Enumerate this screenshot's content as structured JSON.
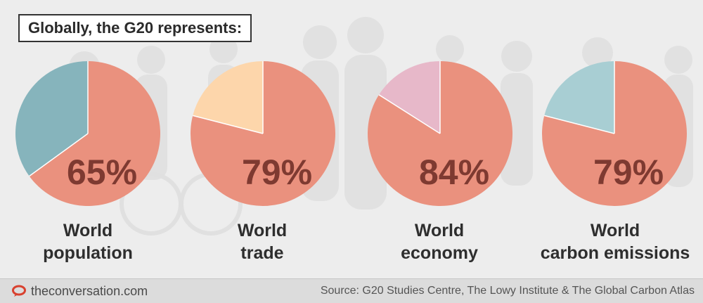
{
  "title": "Globally, the G20 represents:",
  "colors": {
    "main": "#ea917e",
    "remainder": [
      "#86b4bc",
      "#fdd6ab",
      "#e7b8c9",
      "#a8ced3"
    ],
    "value_text": "#7e3a31",
    "brand": "#d8412f"
  },
  "chart_data": {
    "type": "pie",
    "charts": [
      {
        "label_lines": [
          "World",
          "population"
        ],
        "value": 65,
        "value_label": "65%"
      },
      {
        "label_lines": [
          "World",
          "trade"
        ],
        "value": 79,
        "value_label": "79%"
      },
      {
        "label_lines": [
          "World",
          "economy"
        ],
        "value": 84,
        "value_label": "84%"
      },
      {
        "label_lines": [
          "World",
          "carbon emissions"
        ],
        "value": 79,
        "value_label": "79%"
      }
    ]
  },
  "footer": {
    "brand": "theconversation.com",
    "brand_icon": "speech-bubble-icon",
    "source": "Source: G20 Studies Centre, The Lowy Institute & The Global Carbon Atlas"
  }
}
